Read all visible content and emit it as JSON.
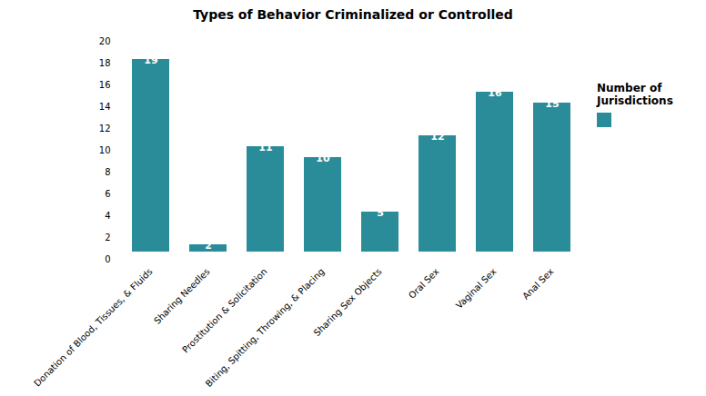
{
  "chart_data": {
    "type": "bar",
    "title": "Types of Behavior  Criminalized  or  Controlled",
    "categories": [
      "Donation of Blood, Tissues, & Fluids",
      "Sharing Needles",
      "Prostitution & Solicitation",
      "Biting, Spitting, Throwing, & Placing",
      "Sharing Sex Objects",
      "Oral Sex",
      "Vaginal Sex",
      "Anal Sex"
    ],
    "series": [
      {
        "name": "Number of\nJurisdictions",
        "color": "#2a8c99",
        "values": [
          19,
          2,
          11,
          10,
          5,
          12,
          16,
          15
        ]
      }
    ],
    "ylim": [
      0,
      20
    ],
    "yticks": [
      0,
      2,
      4,
      6,
      8,
      10,
      12,
      14,
      16,
      18,
      20
    ],
    "grid": false,
    "legend": "right",
    "data_labels": true
  }
}
